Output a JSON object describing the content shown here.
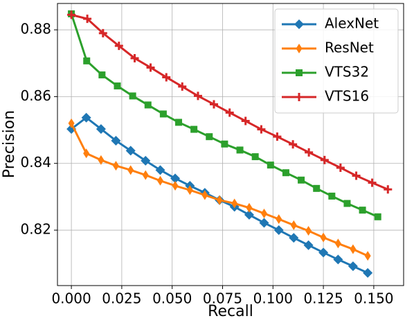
{
  "chart_data": {
    "type": "line",
    "xlabel": "Recall",
    "ylabel": "Precision",
    "xlim": [
      -0.0069,
      0.1648
    ],
    "ylim": [
      0.8034,
      0.8879
    ],
    "xticks": [
      {
        "value": 0,
        "label": "0.000"
      },
      0.025,
      {
        "value": 0.05,
        "label": "0.050"
      },
      0.075,
      {
        "value": 0.1,
        "label": "0.100"
      },
      0.125,
      {
        "value": 0.15,
        "label": "0.150"
      }
    ],
    "yticks": [
      0.82,
      0.84,
      0.86,
      0.88
    ],
    "grid": true,
    "legend": "upper right",
    "series": [
      {
        "name": "AlexNet",
        "color": "#1f77b4",
        "marker": "diamond",
        "x": [
          0,
          0.0074,
          0.0147,
          0.0221,
          0.0294,
          0.0368,
          0.0441,
          0.0515,
          0.0588,
          0.0662,
          0.0735,
          0.0809,
          0.0882,
          0.0956,
          0.1029,
          0.1103,
          0.1176,
          0.125,
          0.1323,
          0.1397,
          0.147
        ],
        "values": [
          0.8503,
          0.8537,
          0.8503,
          0.8468,
          0.8438,
          0.8408,
          0.838,
          0.8355,
          0.8333,
          0.8312,
          0.829,
          0.827,
          0.8246,
          0.8222,
          0.82,
          0.8177,
          0.8155,
          0.8133,
          0.8112,
          0.8092,
          0.8072
        ]
      },
      {
        "name": "ResNet",
        "color": "#ff7f0e",
        "marker": "thin-diamond",
        "x": [
          0,
          0.0074,
          0.0147,
          0.0221,
          0.0294,
          0.0368,
          0.0441,
          0.0515,
          0.0588,
          0.0662,
          0.0735,
          0.0809,
          0.0882,
          0.0956,
          0.1029,
          0.1103,
          0.1176,
          0.125,
          0.1323,
          0.1397,
          0.147
        ],
        "values": [
          0.852,
          0.843,
          0.841,
          0.8393,
          0.838,
          0.8365,
          0.8348,
          0.8333,
          0.832,
          0.8305,
          0.829,
          0.828,
          0.8267,
          0.825,
          0.8233,
          0.8215,
          0.8198,
          0.8178,
          0.816,
          0.8143,
          0.8123
        ]
      },
      {
        "name": "VTS32",
        "color": "#2ca02c",
        "marker": "square",
        "x": [
          0,
          0.0076,
          0.0152,
          0.0228,
          0.0304,
          0.038,
          0.0456,
          0.0532,
          0.0608,
          0.0684,
          0.076,
          0.0836,
          0.0912,
          0.0988,
          0.1064,
          0.114,
          0.1216,
          0.1292,
          0.1368,
          0.1444,
          0.152
        ],
        "values": [
          0.8848,
          0.8707,
          0.8665,
          0.8632,
          0.8602,
          0.8575,
          0.8548,
          0.8523,
          0.8502,
          0.848,
          0.8458,
          0.844,
          0.842,
          0.8395,
          0.8372,
          0.835,
          0.8325,
          0.8302,
          0.828,
          0.826,
          0.824
        ]
      },
      {
        "name": "VTS16",
        "color": "#d62728",
        "marker": "plus",
        "x": [
          0,
          0.0079,
          0.0157,
          0.0236,
          0.0314,
          0.0393,
          0.0471,
          0.055,
          0.0628,
          0.0707,
          0.0785,
          0.0864,
          0.0942,
          0.1021,
          0.1099,
          0.1178,
          0.1256,
          0.1335,
          0.1413,
          0.1492,
          0.157
        ],
        "values": [
          0.8845,
          0.8833,
          0.879,
          0.8752,
          0.8715,
          0.8687,
          0.8658,
          0.863,
          0.8602,
          0.8577,
          0.8552,
          0.8527,
          0.8502,
          0.848,
          0.8457,
          0.8433,
          0.841,
          0.8387,
          0.8363,
          0.8342,
          0.8322
        ]
      }
    ]
  }
}
